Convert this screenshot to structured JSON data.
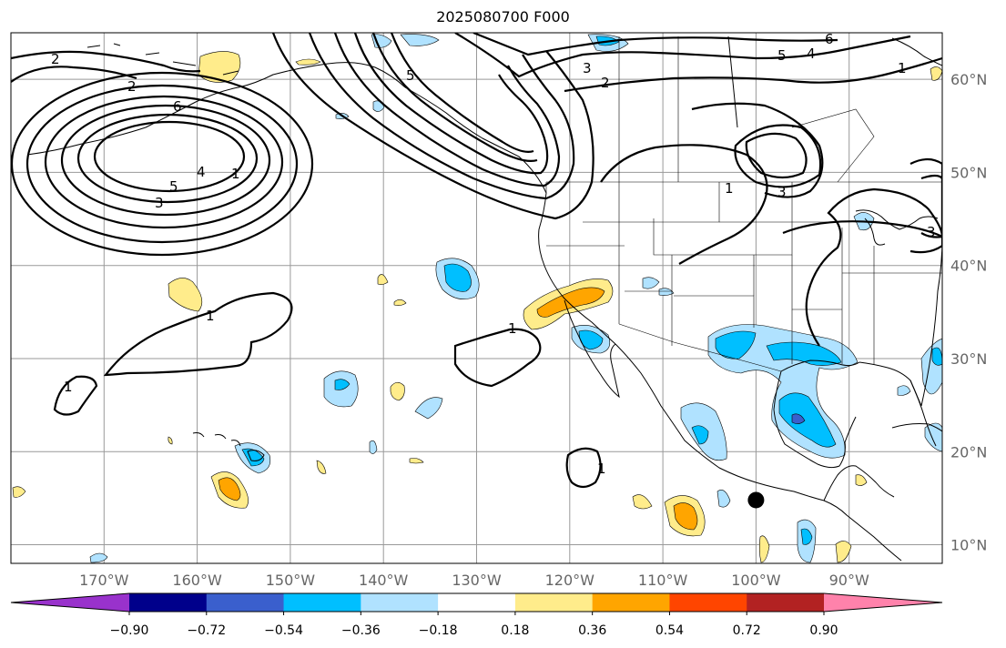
{
  "title": "2025080700 F000",
  "map": {
    "projection": "equirectangular",
    "lon_range": [
      -180,
      -80
    ],
    "lat_range": [
      8,
      65
    ],
    "gridlines": true,
    "marker": {
      "name": "storm-center-marker",
      "lon": -100,
      "lat": 14.8,
      "color": "#000000"
    }
  },
  "lon_ticks": [
    {
      "lon": -170,
      "label": "170°W"
    },
    {
      "lon": -160,
      "label": "160°W"
    },
    {
      "lon": -150,
      "label": "150°W"
    },
    {
      "lon": -140,
      "label": "140°W"
    },
    {
      "lon": -130,
      "label": "130°W"
    },
    {
      "lon": -120,
      "label": "120°W"
    },
    {
      "lon": -110,
      "label": "110°W"
    },
    {
      "lon": -100,
      "label": "100°W"
    },
    {
      "lon": -90,
      "label": "90°W"
    }
  ],
  "lat_ticks": [
    {
      "lat": 60,
      "label": "60°N"
    },
    {
      "lat": 50,
      "label": "50°N"
    },
    {
      "lat": 40,
      "label": "40°N"
    },
    {
      "lat": 30,
      "label": "30°N"
    },
    {
      "lat": 20,
      "label": "20°N"
    },
    {
      "lat": 10,
      "label": "10°N"
    }
  ],
  "colorbar": {
    "colors": [
      "#9932cc",
      "#00008b",
      "#3a5fcd",
      "#00bfff",
      "#b0e2ff",
      "#ffffff",
      "#ffec8b",
      "#ffa500",
      "#ff4500",
      "#b22222",
      "#ff82ab"
    ],
    "ticks": [
      "−0.90",
      "−0.72",
      "−0.54",
      "−0.36",
      "−0.18",
      "0.18",
      "0.36",
      "0.54",
      "0.72",
      "0.90"
    ]
  },
  "contour_labels": [
    "1",
    "2",
    "3",
    "4",
    "5",
    "6"
  ]
}
